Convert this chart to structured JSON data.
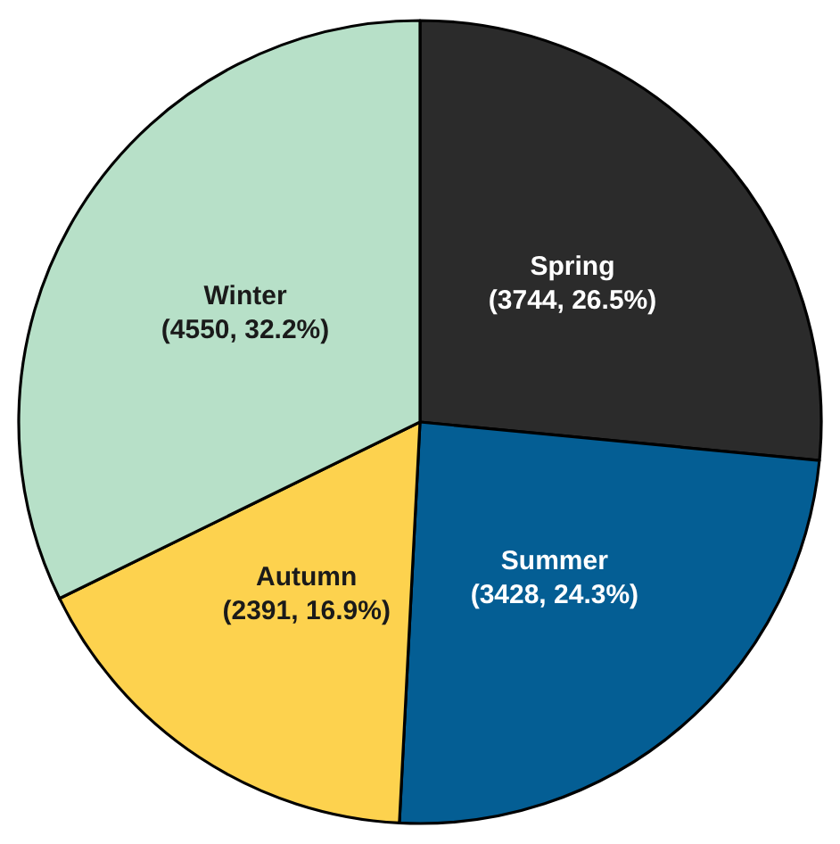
{
  "chart_data": {
    "type": "pie",
    "categories": [
      "Spring",
      "Summer",
      "Autumn",
      "Winter"
    ],
    "values": [
      3744,
      3428,
      2391,
      4550
    ],
    "value_labels": [
      "(3744, 26.5%)",
      "(3428, 24.3%)",
      "(2391, 16.9%)",
      "(4550, 32.2%)"
    ],
    "colors": [
      "#2b2b2b",
      "#045e94",
      "#fdd24e",
      "#b7e0c8"
    ]
  }
}
